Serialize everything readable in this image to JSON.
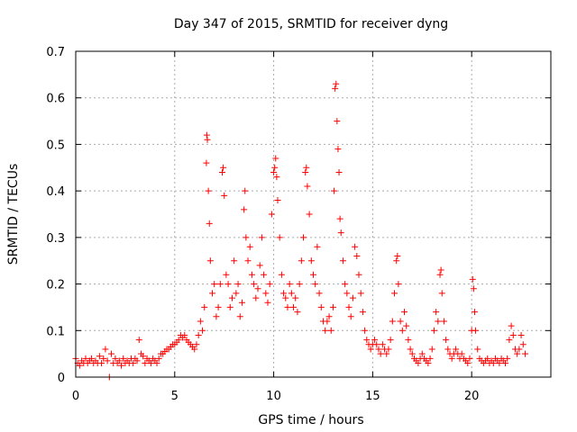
{
  "chart_data": {
    "type": "scatter",
    "title": "Day 347 of 2015, SRMTID for receiver dyng",
    "xlabel": "GPS time / hours",
    "ylabel": "SRMTID / TECUs",
    "xlim": [
      0,
      24
    ],
    "ylim": [
      0,
      0.7
    ],
    "xticks": [
      0,
      5,
      10,
      15,
      20
    ],
    "xtick_labels": [
      "0",
      "5",
      "10",
      "15",
      "20"
    ],
    "yticks": [
      0,
      0.1,
      0.2,
      0.3,
      0.4,
      0.5,
      0.6,
      0.7
    ],
    "ytick_labels": [
      "0",
      "0.1",
      "0.2",
      "0.3",
      "0.4",
      "0.5",
      "0.6",
      "0.7"
    ],
    "grid": true,
    "marker": "+",
    "color": "#ff0000",
    "series": [
      {
        "name": "SRMTID",
        "points": [
          [
            0.0,
            0.04
          ],
          [
            0.1,
            0.03
          ],
          [
            0.2,
            0.025
          ],
          [
            0.3,
            0.035
          ],
          [
            0.4,
            0.03
          ],
          [
            0.5,
            0.04
          ],
          [
            0.6,
            0.03
          ],
          [
            0.7,
            0.035
          ],
          [
            0.8,
            0.04
          ],
          [
            0.9,
            0.03
          ],
          [
            1.0,
            0.035
          ],
          [
            1.1,
            0.03
          ],
          [
            1.2,
            0.045
          ],
          [
            1.3,
            0.03
          ],
          [
            1.4,
            0.04
          ],
          [
            1.5,
            0.06
          ],
          [
            1.6,
            0.035
          ],
          [
            1.7,
            0.0
          ],
          [
            1.8,
            0.05
          ],
          [
            1.9,
            0.03
          ],
          [
            2.0,
            0.04
          ],
          [
            2.1,
            0.03
          ],
          [
            2.2,
            0.035
          ],
          [
            2.3,
            0.025
          ],
          [
            2.4,
            0.04
          ],
          [
            2.5,
            0.03
          ],
          [
            2.6,
            0.035
          ],
          [
            2.7,
            0.03
          ],
          [
            2.8,
            0.04
          ],
          [
            2.9,
            0.03
          ],
          [
            3.0,
            0.04
          ],
          [
            3.1,
            0.035
          ],
          [
            3.2,
            0.08
          ],
          [
            3.3,
            0.05
          ],
          [
            3.4,
            0.045
          ],
          [
            3.5,
            0.03
          ],
          [
            3.6,
            0.04
          ],
          [
            3.7,
            0.035
          ],
          [
            3.8,
            0.03
          ],
          [
            3.9,
            0.04
          ],
          [
            4.0,
            0.035
          ],
          [
            4.1,
            0.03
          ],
          [
            4.2,
            0.04
          ],
          [
            4.3,
            0.05
          ],
          [
            4.4,
            0.05
          ],
          [
            4.5,
            0.055
          ],
          [
            4.6,
            0.06
          ],
          [
            4.7,
            0.06
          ],
          [
            4.8,
            0.065
          ],
          [
            4.9,
            0.07
          ],
          [
            5.0,
            0.07
          ],
          [
            5.1,
            0.075
          ],
          [
            5.2,
            0.08
          ],
          [
            5.3,
            0.09
          ],
          [
            5.4,
            0.085
          ],
          [
            5.5,
            0.09
          ],
          [
            5.6,
            0.08
          ],
          [
            5.7,
            0.075
          ],
          [
            5.8,
            0.07
          ],
          [
            5.9,
            0.065
          ],
          [
            6.0,
            0.06
          ],
          [
            6.1,
            0.07
          ],
          [
            6.2,
            0.09
          ],
          [
            6.3,
            0.12
          ],
          [
            6.4,
            0.1
          ],
          [
            6.5,
            0.15
          ],
          [
            6.6,
            0.46
          ],
          [
            6.62,
            0.52
          ],
          [
            6.65,
            0.51
          ],
          [
            6.7,
            0.4
          ],
          [
            6.75,
            0.33
          ],
          [
            6.8,
            0.25
          ],
          [
            6.9,
            0.18
          ],
          [
            7.0,
            0.2
          ],
          [
            7.1,
            0.13
          ],
          [
            7.2,
            0.15
          ],
          [
            7.3,
            0.2
          ],
          [
            7.4,
            0.44
          ],
          [
            7.45,
            0.45
          ],
          [
            7.5,
            0.39
          ],
          [
            7.6,
            0.22
          ],
          [
            7.7,
            0.2
          ],
          [
            7.8,
            0.15
          ],
          [
            7.9,
            0.17
          ],
          [
            8.0,
            0.25
          ],
          [
            8.1,
            0.18
          ],
          [
            8.2,
            0.2
          ],
          [
            8.3,
            0.13
          ],
          [
            8.4,
            0.16
          ],
          [
            8.5,
            0.36
          ],
          [
            8.55,
            0.4
          ],
          [
            8.6,
            0.3
          ],
          [
            8.7,
            0.25
          ],
          [
            8.8,
            0.28
          ],
          [
            8.9,
            0.22
          ],
          [
            9.0,
            0.2
          ],
          [
            9.1,
            0.17
          ],
          [
            9.2,
            0.19
          ],
          [
            9.3,
            0.24
          ],
          [
            9.4,
            0.3
          ],
          [
            9.5,
            0.22
          ],
          [
            9.6,
            0.18
          ],
          [
            9.7,
            0.16
          ],
          [
            9.8,
            0.2
          ],
          [
            9.9,
            0.35
          ],
          [
            10.0,
            0.44
          ],
          [
            10.05,
            0.45
          ],
          [
            10.1,
            0.47
          ],
          [
            10.15,
            0.43
          ],
          [
            10.2,
            0.38
          ],
          [
            10.3,
            0.3
          ],
          [
            10.4,
            0.22
          ],
          [
            10.5,
            0.18
          ],
          [
            10.6,
            0.17
          ],
          [
            10.7,
            0.15
          ],
          [
            10.8,
            0.2
          ],
          [
            10.9,
            0.18
          ],
          [
            11.0,
            0.15
          ],
          [
            11.1,
            0.17
          ],
          [
            11.2,
            0.14
          ],
          [
            11.3,
            0.2
          ],
          [
            11.4,
            0.25
          ],
          [
            11.5,
            0.3
          ],
          [
            11.6,
            0.44
          ],
          [
            11.65,
            0.45
          ],
          [
            11.7,
            0.41
          ],
          [
            11.8,
            0.35
          ],
          [
            11.9,
            0.25
          ],
          [
            12.0,
            0.22
          ],
          [
            12.1,
            0.2
          ],
          [
            12.2,
            0.28
          ],
          [
            12.3,
            0.18
          ],
          [
            12.4,
            0.15
          ],
          [
            12.5,
            0.12
          ],
          [
            12.6,
            0.1
          ],
          [
            12.7,
            0.12
          ],
          [
            12.8,
            0.13
          ],
          [
            12.9,
            0.1
          ],
          [
            13.0,
            0.15
          ],
          [
            13.05,
            0.4
          ],
          [
            13.1,
            0.62
          ],
          [
            13.15,
            0.63
          ],
          [
            13.2,
            0.55
          ],
          [
            13.25,
            0.49
          ],
          [
            13.3,
            0.44
          ],
          [
            13.35,
            0.34
          ],
          [
            13.4,
            0.31
          ],
          [
            13.5,
            0.25
          ],
          [
            13.6,
            0.2
          ],
          [
            13.7,
            0.18
          ],
          [
            13.8,
            0.15
          ],
          [
            13.9,
            0.13
          ],
          [
            14.0,
            0.17
          ],
          [
            14.1,
            0.28
          ],
          [
            14.2,
            0.26
          ],
          [
            14.3,
            0.22
          ],
          [
            14.4,
            0.18
          ],
          [
            14.5,
            0.14
          ],
          [
            14.6,
            0.1
          ],
          [
            14.7,
            0.08
          ],
          [
            14.8,
            0.07
          ],
          [
            14.9,
            0.06
          ],
          [
            15.0,
            0.07
          ],
          [
            15.1,
            0.08
          ],
          [
            15.2,
            0.07
          ],
          [
            15.3,
            0.06
          ],
          [
            15.4,
            0.05
          ],
          [
            15.5,
            0.07
          ],
          [
            15.6,
            0.06
          ],
          [
            15.7,
            0.05
          ],
          [
            15.8,
            0.06
          ],
          [
            15.9,
            0.08
          ],
          [
            16.0,
            0.12
          ],
          [
            16.1,
            0.18
          ],
          [
            16.2,
            0.25
          ],
          [
            16.25,
            0.26
          ],
          [
            16.3,
            0.2
          ],
          [
            16.4,
            0.12
          ],
          [
            16.5,
            0.1
          ],
          [
            16.6,
            0.14
          ],
          [
            16.7,
            0.11
          ],
          [
            16.8,
            0.08
          ],
          [
            16.9,
            0.06
          ],
          [
            17.0,
            0.05
          ],
          [
            17.1,
            0.04
          ],
          [
            17.2,
            0.035
          ],
          [
            17.3,
            0.03
          ],
          [
            17.4,
            0.04
          ],
          [
            17.5,
            0.05
          ],
          [
            17.6,
            0.04
          ],
          [
            17.7,
            0.035
          ],
          [
            17.8,
            0.03
          ],
          [
            17.9,
            0.04
          ],
          [
            18.0,
            0.06
          ],
          [
            18.1,
            0.1
          ],
          [
            18.2,
            0.14
          ],
          [
            18.3,
            0.12
          ],
          [
            18.4,
            0.22
          ],
          [
            18.45,
            0.23
          ],
          [
            18.5,
            0.18
          ],
          [
            18.6,
            0.12
          ],
          [
            18.7,
            0.08
          ],
          [
            18.8,
            0.06
          ],
          [
            18.9,
            0.05
          ],
          [
            19.0,
            0.04
          ],
          [
            19.1,
            0.05
          ],
          [
            19.2,
            0.06
          ],
          [
            19.3,
            0.05
          ],
          [
            19.4,
            0.04
          ],
          [
            19.5,
            0.05
          ],
          [
            19.6,
            0.04
          ],
          [
            19.7,
            0.035
          ],
          [
            19.8,
            0.03
          ],
          [
            19.9,
            0.04
          ],
          [
            20.0,
            0.1
          ],
          [
            20.05,
            0.21
          ],
          [
            20.1,
            0.19
          ],
          [
            20.15,
            0.14
          ],
          [
            20.2,
            0.1
          ],
          [
            20.3,
            0.06
          ],
          [
            20.4,
            0.04
          ],
          [
            20.5,
            0.035
          ],
          [
            20.6,
            0.03
          ],
          [
            20.7,
            0.035
          ],
          [
            20.8,
            0.04
          ],
          [
            20.9,
            0.03
          ],
          [
            21.0,
            0.035
          ],
          [
            21.1,
            0.03
          ],
          [
            21.2,
            0.04
          ],
          [
            21.3,
            0.035
          ],
          [
            21.4,
            0.03
          ],
          [
            21.5,
            0.04
          ],
          [
            21.6,
            0.035
          ],
          [
            21.7,
            0.03
          ],
          [
            21.8,
            0.04
          ],
          [
            21.9,
            0.08
          ],
          [
            22.0,
            0.11
          ],
          [
            22.1,
            0.09
          ],
          [
            22.2,
            0.06
          ],
          [
            22.3,
            0.05
          ],
          [
            22.4,
            0.06
          ],
          [
            22.5,
            0.09
          ],
          [
            22.6,
            0.07
          ],
          [
            22.7,
            0.05
          ]
        ]
      }
    ]
  }
}
